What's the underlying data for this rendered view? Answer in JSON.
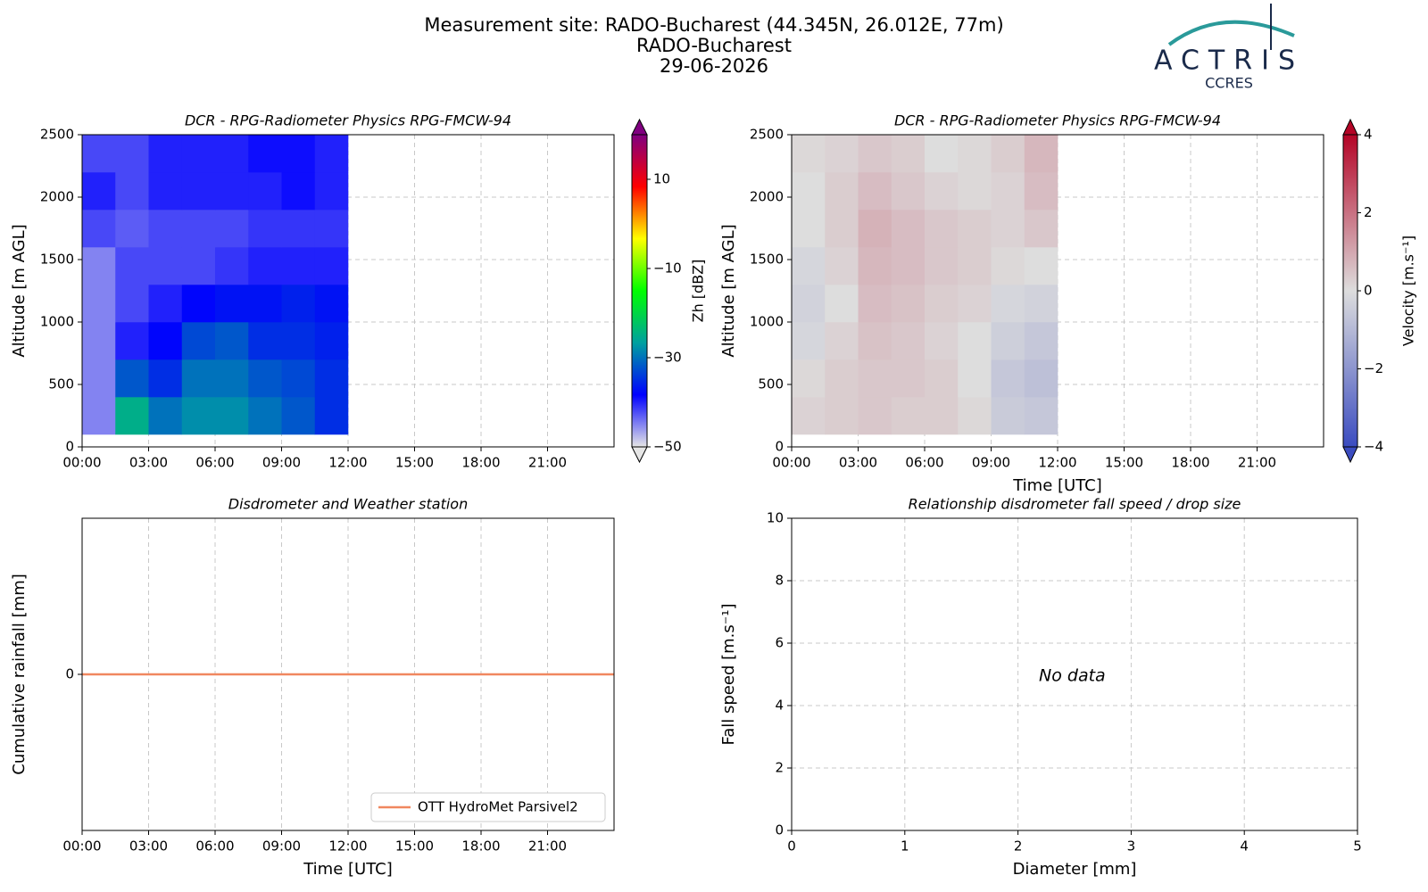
{
  "header": {
    "title_lines": [
      "Measurement site: RADO-Bucharest (44.345N, 26.012E, 77m)",
      "RADO-Bucharest",
      "29-06-2026"
    ],
    "logo": "ACTRIS",
    "logo_sub": "CCRES"
  },
  "chart_data": [
    {
      "type": "heatmap",
      "title": "DCR - RPG-Radiometer Physics RPG-FMCW-94",
      "ylabel": "Altitude [m AGL]",
      "xlim": [
        0,
        24
      ],
      "xticks": [
        {
          "value": 0,
          "label": "00:00"
        },
        {
          "value": 3,
          "label": "03:00"
        },
        {
          "value": 6,
          "label": "06:00"
        },
        {
          "value": 9,
          "label": "09:00"
        },
        {
          "value": 12,
          "label": "12:00"
        },
        {
          "value": 15,
          "label": "15:00"
        },
        {
          "value": 18,
          "label": "18:00"
        },
        {
          "value": 21,
          "label": "21:00"
        }
      ],
      "ylim": [
        0,
        2500
      ],
      "yticks": [
        0,
        500,
        1000,
        1500,
        2000,
        2500
      ],
      "grid": true,
      "x_edges": [
        0,
        1.5,
        3,
        4.5,
        6,
        7.5,
        9,
        10.5,
        12
      ],
      "y_edges": [
        100,
        400,
        700,
        1000,
        1300,
        1600,
        1900,
        2200,
        2500
      ],
      "z": [
        [
          -45,
          -25,
          -30,
          -28,
          -28,
          -30,
          -32,
          -35
        ],
        [
          -45,
          -32,
          -35,
          -30,
          -30,
          -32,
          -33,
          -35
        ],
        [
          -45,
          -40,
          -38,
          -33,
          -32,
          -35,
          -35,
          -36
        ],
        [
          -45,
          -42,
          -40,
          -38,
          -37,
          -37,
          -36,
          -37
        ],
        [
          -45,
          -42,
          -42,
          -42,
          -41,
          -40,
          -40,
          -40
        ],
        [
          -42,
          -43,
          -42,
          -42,
          -42,
          -41,
          -41,
          -41
        ],
        [
          -40,
          -42,
          -40,
          -40,
          -40,
          -40,
          -39,
          -40
        ],
        [
          -42,
          -42,
          -40,
          -40,
          -40,
          -39,
          -39,
          -40
        ]
      ],
      "clim": [
        -50,
        20
      ],
      "cticks": [
        {
          "value": -50,
          "label": "−50"
        },
        {
          "value": -30,
          "label": "−30"
        },
        {
          "value": -10,
          "label": "−10"
        },
        10
      ],
      "colorbar_label": "Zh [dBZ]",
      "colormap": [
        "#e6e6e6",
        "#0000ff",
        "#00a0a0",
        "#00ff00",
        "#ffff00",
        "#ff0000",
        "#800080"
      ]
    },
    {
      "type": "heatmap",
      "title": "DCR - RPG-Radiometer Physics RPG-FMCW-94",
      "ylabel": "Altitude [m AGL]",
      "xlabel": "Time [UTC]",
      "xlim": [
        0,
        24
      ],
      "xticks": [
        {
          "value": 0,
          "label": "00:00"
        },
        {
          "value": 3,
          "label": "03:00"
        },
        {
          "value": 6,
          "label": "06:00"
        },
        {
          "value": 9,
          "label": "09:00"
        },
        {
          "value": 12,
          "label": "12:00"
        },
        {
          "value": 15,
          "label": "15:00"
        },
        {
          "value": 18,
          "label": "18:00"
        },
        {
          "value": 21,
          "label": "21:00"
        }
      ],
      "ylim": [
        0,
        2500
      ],
      "yticks": [
        0,
        500,
        1000,
        1500,
        2000,
        2500
      ],
      "grid": true,
      "x_edges": [
        0,
        1.5,
        3,
        4.5,
        6,
        7.5,
        9,
        10.5,
        12
      ],
      "y_edges": [
        100,
        400,
        700,
        1000,
        1300,
        1600,
        1900,
        2200,
        2500
      ],
      "z": [
        [
          0.2,
          0.3,
          0.4,
          0.3,
          0.3,
          0.1,
          -0.5,
          -0.6
        ],
        [
          0.1,
          0.3,
          0.4,
          0.4,
          0.3,
          0.0,
          -0.6,
          -0.8
        ],
        [
          -0.2,
          0.2,
          0.5,
          0.4,
          0.2,
          0.0,
          -0.4,
          -0.6
        ],
        [
          -0.3,
          0.0,
          0.6,
          0.5,
          0.3,
          0.2,
          -0.2,
          -0.3
        ],
        [
          -0.2,
          0.2,
          0.7,
          0.6,
          0.4,
          0.3,
          0.1,
          0.0
        ],
        [
          0.0,
          0.3,
          0.8,
          0.6,
          0.4,
          0.3,
          0.2,
          0.4
        ],
        [
          0.0,
          0.3,
          0.6,
          0.4,
          0.2,
          0.1,
          0.2,
          0.6
        ],
        [
          0.1,
          0.2,
          0.4,
          0.3,
          0.0,
          0.1,
          0.3,
          0.7
        ]
      ],
      "clim": [
        -4,
        4
      ],
      "cticks": [
        {
          "value": -4,
          "label": "−4"
        },
        {
          "value": -2,
          "label": "−2"
        },
        0,
        2,
        4
      ],
      "colorbar_label": "Velocity [m.s⁻¹]",
      "colormap": [
        "#3b4cc0",
        "#dddddd",
        "#b40426"
      ]
    },
    {
      "type": "line",
      "title": "Disdrometer and Weather station",
      "ylabel": "Cumulative rainfall [mm]",
      "xlabel": "Time [UTC]",
      "xlim": [
        0,
        24
      ],
      "xticks": [
        {
          "value": 0,
          "label": "00:00"
        },
        {
          "value": 3,
          "label": "03:00"
        },
        {
          "value": 6,
          "label": "06:00"
        },
        {
          "value": 9,
          "label": "09:00"
        },
        {
          "value": 12,
          "label": "12:00"
        },
        {
          "value": 15,
          "label": "15:00"
        },
        {
          "value": 18,
          "label": "18:00"
        },
        {
          "value": 21,
          "label": "21:00"
        }
      ],
      "ylim": [
        -0.05,
        0.05
      ],
      "yticks": [
        0
      ],
      "grid": true,
      "legend": "lower right",
      "x": [
        0,
        24
      ],
      "series": [
        {
          "name": "OTT HydroMet Parsivel2",
          "color": "#f0875f",
          "values": [
            0,
            0
          ]
        }
      ]
    },
    {
      "type": "scatter",
      "title": "Relationship disdrometer fall speed / drop size",
      "ylabel": "Fall speed [m.s⁻¹]",
      "xlabel": "Diameter [mm]",
      "xlim": [
        0,
        5
      ],
      "xticks": [
        0,
        1,
        2,
        3,
        4,
        5
      ],
      "ylim": [
        0,
        10
      ],
      "yticks": [
        0,
        2,
        4,
        6,
        8,
        10
      ],
      "grid": true,
      "x": [],
      "values": [],
      "annotation": "No data"
    }
  ]
}
